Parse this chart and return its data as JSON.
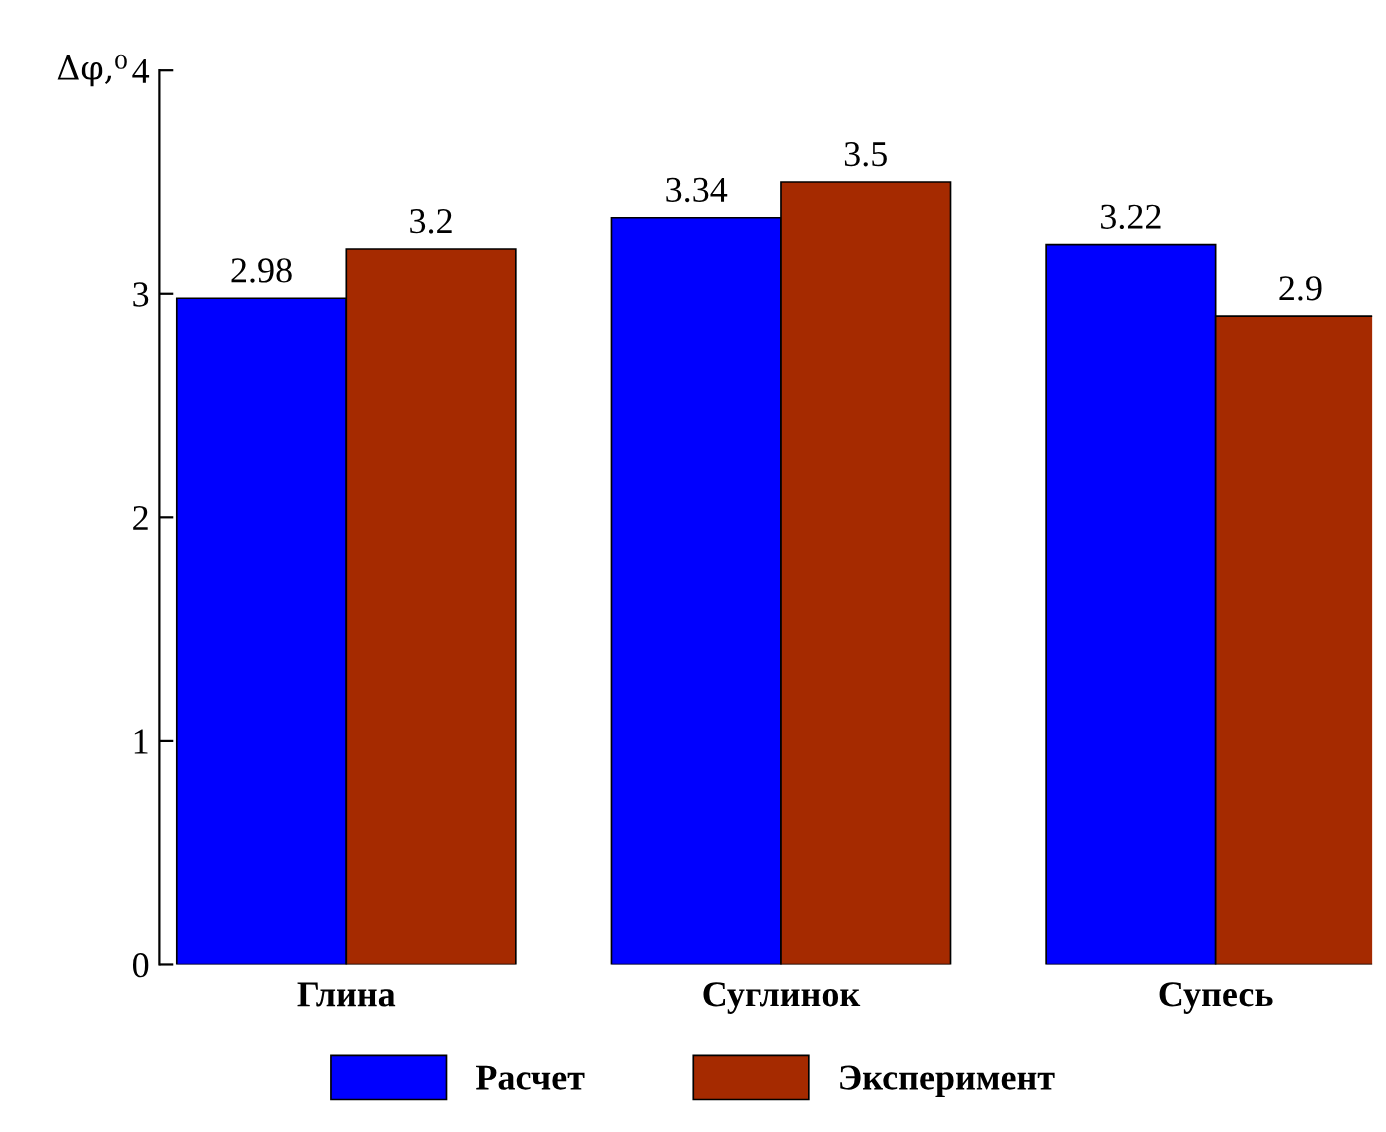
{
  "chart_data": {
    "type": "bar",
    "ylabel": "Δφ,⁰",
    "categories": [
      "Глина",
      "Суглинок",
      "Супесь"
    ],
    "series": [
      {
        "name": "Расчет",
        "color": "#0000ff",
        "values": [
          2.98,
          3.34,
          3.22
        ]
      },
      {
        "name": "Эксперимент",
        "color": "#a52a00",
        "values": [
          3.2,
          3.5,
          2.9
        ]
      }
    ],
    "ylim": [
      0,
      4
    ],
    "yticks": [
      0,
      1,
      2,
      3,
      4
    ],
    "grid": false,
    "legend": "bottom",
    "data_labels": true
  }
}
